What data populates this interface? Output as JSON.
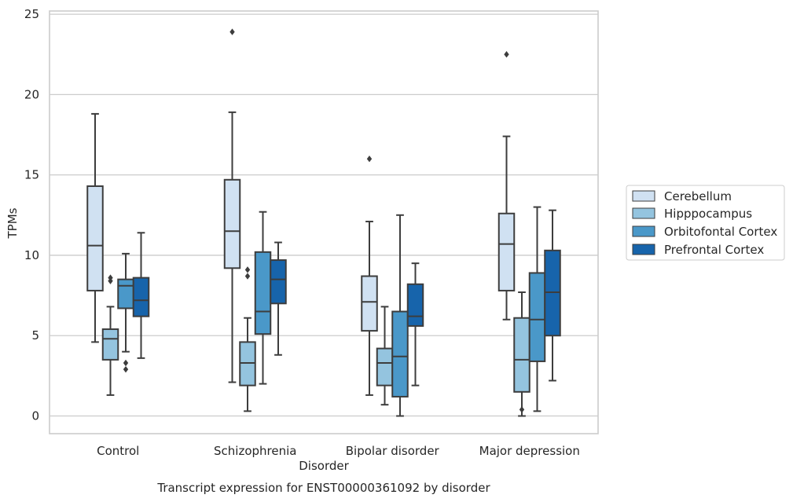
{
  "chart_data": {
    "type": "boxplot",
    "title": "Transcript expression for ENST00000361092 by disorder",
    "xlabel": "Disorder",
    "ylabel": "TPMs",
    "ylim": [
      -1.1,
      25.2
    ],
    "yticks": [
      0,
      5,
      10,
      15,
      20,
      25
    ],
    "grid": true,
    "legend_position": "right",
    "categories": [
      "Control",
      "Schizophrenia",
      "Bipolar disorder",
      "Major depression"
    ],
    "series": [
      {
        "name": "Cerebellum",
        "color": "#d0e1f2",
        "boxes": [
          {
            "whisker_low": 4.6,
            "q1": 7.8,
            "median": 10.6,
            "q3": 14.3,
            "whisker_high": 18.8,
            "outliers": []
          },
          {
            "whisker_low": 2.1,
            "q1": 9.2,
            "median": 11.5,
            "q3": 14.7,
            "whisker_high": 18.9,
            "outliers": [
              23.9
            ]
          },
          {
            "whisker_low": 1.3,
            "q1": 5.3,
            "median": 7.1,
            "q3": 8.7,
            "whisker_high": 12.1,
            "outliers": [
              16.0
            ]
          },
          {
            "whisker_low": 6.0,
            "q1": 7.8,
            "median": 10.7,
            "q3": 12.6,
            "whisker_high": 17.4,
            "outliers": [
              22.5
            ]
          }
        ]
      },
      {
        "name": "Hipppocampus",
        "color": "#94c4df",
        "boxes": [
          {
            "whisker_low": 1.3,
            "q1": 3.5,
            "median": 4.8,
            "q3": 5.4,
            "whisker_high": 6.8,
            "outliers": [
              8.4,
              8.6
            ]
          },
          {
            "whisker_low": 0.3,
            "q1": 1.9,
            "median": 3.3,
            "q3": 4.6,
            "whisker_high": 6.1,
            "outliers": [
              8.7,
              9.1
            ]
          },
          {
            "whisker_low": 0.7,
            "q1": 1.9,
            "median": 3.3,
            "q3": 4.2,
            "whisker_high": 6.8,
            "outliers": []
          },
          {
            "whisker_low": 0.0,
            "q1": 1.5,
            "median": 3.5,
            "q3": 6.1,
            "whisker_high": 7.7,
            "outliers": [
              0.4
            ]
          }
        ]
      },
      {
        "name": "Orbitofontal Cortex",
        "color": "#4a98c9",
        "boxes": [
          {
            "whisker_low": 4.0,
            "q1": 6.7,
            "median": 8.1,
            "q3": 8.5,
            "whisker_high": 10.1,
            "outliers": [
              2.9,
              3.3
            ]
          },
          {
            "whisker_low": 2.0,
            "q1": 5.1,
            "median": 6.5,
            "q3": 10.2,
            "whisker_high": 12.7,
            "outliers": []
          },
          {
            "whisker_low": 0.0,
            "q1": 1.2,
            "median": 3.7,
            "q3": 6.5,
            "whisker_high": 12.5,
            "outliers": []
          },
          {
            "whisker_low": 0.3,
            "q1": 3.4,
            "median": 6.0,
            "q3": 8.9,
            "whisker_high": 13.0,
            "outliers": []
          }
        ]
      },
      {
        "name": "Prefrontal Cortex",
        "color": "#1764ab",
        "boxes": [
          {
            "whisker_low": 3.6,
            "q1": 6.2,
            "median": 7.2,
            "q3": 8.6,
            "whisker_high": 11.4,
            "outliers": []
          },
          {
            "whisker_low": 3.8,
            "q1": 7.0,
            "median": 8.5,
            "q3": 9.7,
            "whisker_high": 10.8,
            "outliers": []
          },
          {
            "whisker_low": 1.9,
            "q1": 5.6,
            "median": 6.2,
            "q3": 8.2,
            "whisker_high": 9.5,
            "outliers": []
          },
          {
            "whisker_low": 2.2,
            "q1": 5.0,
            "median": 7.7,
            "q3": 10.3,
            "whisker_high": 12.8,
            "outliers": []
          }
        ]
      }
    ]
  }
}
